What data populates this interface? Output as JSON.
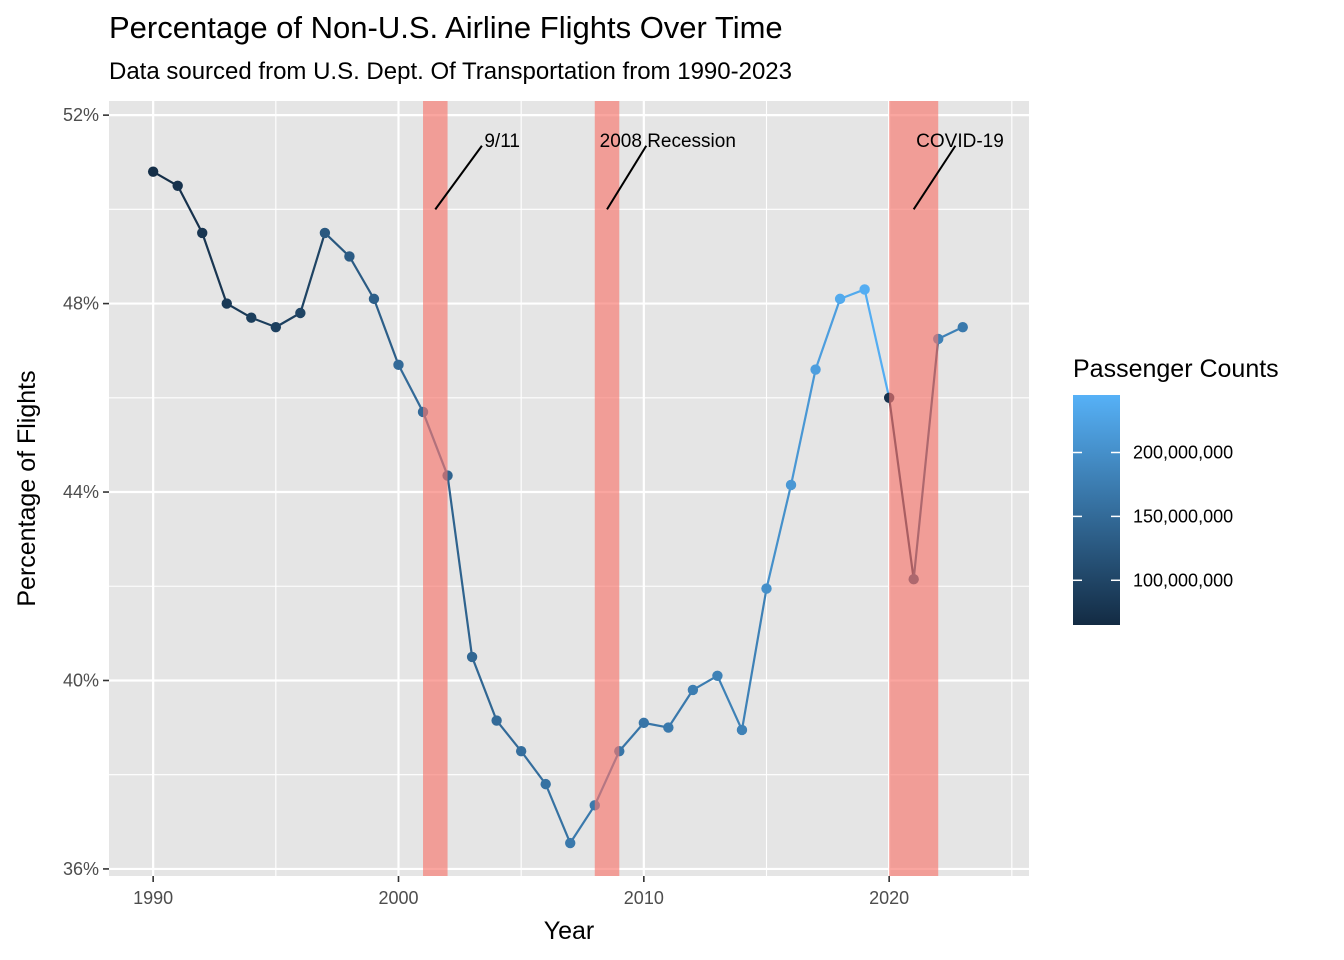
{
  "chart_data": {
    "type": "line",
    "title": "Percentage of Non-U.S. Airline Flights Over Time",
    "subtitle": "Data sourced from U.S. Dept. Of Transportation from 1990-2023",
    "xlabel": "Year",
    "ylabel": "Percentage of Flights",
    "xlim": [
      1988.2,
      2025.7
    ],
    "ylim": [
      35.85,
      52.3
    ],
    "x_ticks": [
      1990,
      2000,
      2010,
      2020
    ],
    "x_tick_labels": [
      "1990",
      "2000",
      "2010",
      "2020"
    ],
    "y_ticks": [
      36,
      40,
      44,
      48,
      52
    ],
    "y_tick_labels": [
      "36%",
      "40%",
      "44%",
      "48%",
      "52%"
    ],
    "grid": true,
    "panel_background": "#e5e5e5",
    "x": [
      1990,
      1991,
      1992,
      1993,
      1994,
      1995,
      1996,
      1997,
      1998,
      1999,
      2000,
      2001,
      2002,
      2003,
      2004,
      2005,
      2006,
      2007,
      2008,
      2009,
      2010,
      2011,
      2012,
      2013,
      2014,
      2015,
      2016,
      2017,
      2018,
      2019,
      2020,
      2021,
      2022,
      2023
    ],
    "y": [
      50.8,
      50.5,
      49.5,
      48.0,
      47.7,
      47.5,
      47.8,
      49.5,
      49.0,
      48.1,
      46.7,
      45.7,
      44.35,
      40.5,
      39.15,
      38.5,
      37.8,
      36.55,
      37.35,
      38.5,
      39.1,
      39.0,
      39.8,
      40.1,
      38.95,
      41.95,
      44.15,
      46.6,
      48.1,
      48.3,
      46.0,
      42.15,
      47.25,
      47.5
    ],
    "color_values": [
      70000000,
      75000000,
      80000000,
      85000000,
      90000000,
      93000000,
      98000000,
      125000000,
      130000000,
      135000000,
      150000000,
      150000000,
      140000000,
      145000000,
      150000000,
      155000000,
      160000000,
      170000000,
      170000000,
      165000000,
      165000000,
      170000000,
      175000000,
      180000000,
      180000000,
      200000000,
      210000000,
      220000000,
      235000000,
      240000000,
      75000000,
      110000000,
      180000000,
      170000000
    ],
    "color_legend": {
      "title": "Passenger Counts",
      "min": 65000000,
      "max": 245000000,
      "low_color": "#132b43",
      "high_color": "#56b1f7",
      "breaks": [
        100000000,
        150000000,
        200000000
      ],
      "break_labels": [
        "100,000,000",
        "150,000,000",
        "200,000,000"
      ]
    },
    "shaded_periods": [
      {
        "start": 2001,
        "end": 2002,
        "color": "#f8766d"
      },
      {
        "start": 2008,
        "end": 2009,
        "color": "#f8766d"
      },
      {
        "start": 2020,
        "end": 2022,
        "color": "#f8766d"
      }
    ],
    "annotations": [
      {
        "label": "9/11",
        "x": 2003.5,
        "y": 51.45,
        "line_from": [
          2001.5,
          50.0
        ],
        "line_to": [
          2003.4,
          51.35
        ]
      },
      {
        "label": "2008 Recession",
        "x": 2008.2,
        "y": 51.45,
        "line_from": [
          2008.5,
          50.0
        ],
        "line_to": [
          2010.1,
          51.35
        ]
      },
      {
        "label": "COVID-19",
        "x": 2021.1,
        "y": 51.45,
        "line_from": [
          2021.0,
          50.0
        ],
        "line_to": [
          2022.7,
          51.35
        ]
      }
    ]
  }
}
